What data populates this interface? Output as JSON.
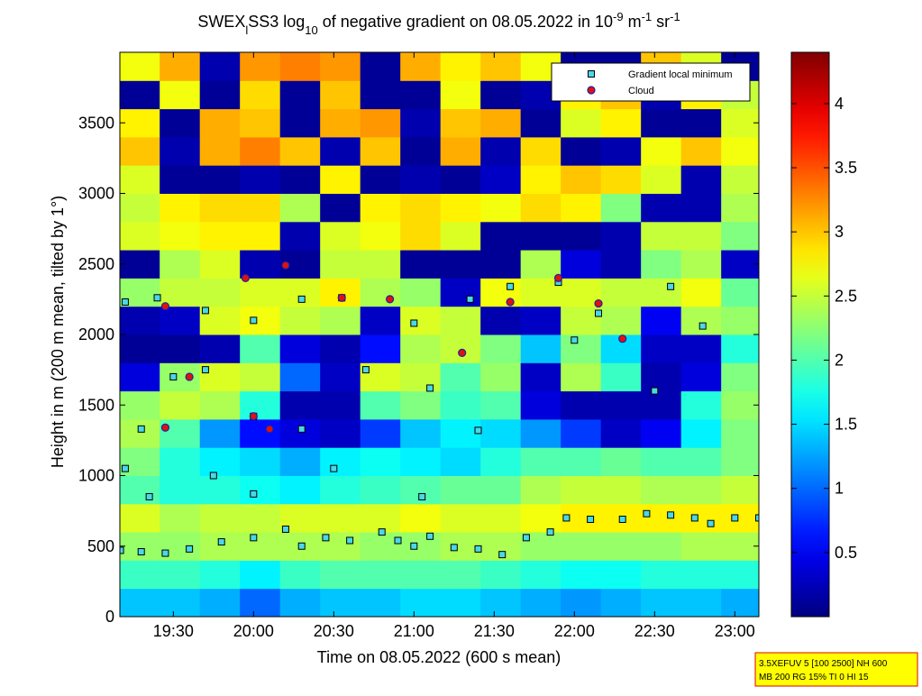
{
  "chart_data": {
    "type": "heatmap",
    "title_parts": [
      {
        "text": "SWEX",
        "baseline": "normal"
      },
      {
        "text": "l",
        "baseline": "sub"
      },
      {
        "text": "SS3 log",
        "baseline": "normal"
      },
      {
        "text": "10",
        "baseline": "sub"
      },
      {
        "text": " of negative gradient on 08.05.2022 in 10",
        "baseline": "normal"
      },
      {
        "text": "-9",
        "baseline": "super"
      },
      {
        "text": " m",
        "baseline": "normal"
      },
      {
        "text": "-1",
        "baseline": "super"
      },
      {
        "text": " sr",
        "baseline": "normal"
      },
      {
        "text": "-1",
        "baseline": "super"
      }
    ],
    "x_label": "Time on 08.05.2022 (600 s mean)",
    "y_label": "Height in m (200 m mean, tilted by 1°)",
    "colormap": "jet",
    "xlim": [
      19.1667,
      23.15
    ],
    "ylim": [
      0,
      4000
    ],
    "clim": [
      0,
      4.4
    ],
    "xticks": [
      {
        "value": 19.5,
        "label": "19:30"
      },
      {
        "value": 20,
        "label": "20:00"
      },
      {
        "value": 20.5,
        "label": "20:30"
      },
      {
        "value": 21,
        "label": "21:00"
      },
      {
        "value": 21.5,
        "label": "21:30"
      },
      {
        "value": 22,
        "label": "22:00"
      },
      {
        "value": 22.5,
        "label": "22:30"
      },
      {
        "value": 23,
        "label": "23:00"
      }
    ],
    "yticks": [
      0,
      500,
      1000,
      1500,
      2000,
      2500,
      3000,
      3500
    ],
    "cticks": [
      0.5,
      1,
      1.5,
      2,
      2.5,
      3,
      3.5,
      4
    ],
    "x": [
      19.29,
      19.54,
      19.79,
      20.04,
      20.29,
      20.54,
      20.79,
      21.04,
      21.29,
      21.54,
      21.79,
      22.04,
      22.29,
      22.54,
      22.79,
      23.04
    ],
    "y": [
      100,
      300,
      500,
      700,
      900,
      1100,
      1300,
      1500,
      1700,
      1900,
      2100,
      2300,
      2500,
      2700,
      2900,
      3100,
      3300,
      3500,
      3700,
      3900
    ],
    "z": [
      [
        1.4,
        1.4,
        1.3,
        1.0,
        1.3,
        1.4,
        1.4,
        1.5,
        1.5,
        1.4,
        1.3,
        1.2,
        1.3,
        1.4,
        1.4,
        1.3
      ],
      [
        1.9,
        1.9,
        1.8,
        1.6,
        1.9,
        2.0,
        2.0,
        2.0,
        2.0,
        1.9,
        1.8,
        1.7,
        1.7,
        1.8,
        1.8,
        1.8
      ],
      [
        2.3,
        2.3,
        2.4,
        2.4,
        2.4,
        2.4,
        2.3,
        2.3,
        2.4,
        2.4,
        2.3,
        2.3,
        2.3,
        2.3,
        2.4,
        2.4
      ],
      [
        2.6,
        2.4,
        2.5,
        2.5,
        2.6,
        2.6,
        2.6,
        2.7,
        2.6,
        2.6,
        2.7,
        2.8,
        2.8,
        2.8,
        2.8,
        2.8
      ],
      [
        2.0,
        1.8,
        1.8,
        1.7,
        1.6,
        1.8,
        1.9,
        2.0,
        2.1,
        2.1,
        2.4,
        2.5,
        2.5,
        2.4,
        2.4,
        2.5
      ],
      [
        2.2,
        1.8,
        1.6,
        1.5,
        1.3,
        1.6,
        1.7,
        1.6,
        1.5,
        1.8,
        2.0,
        2.0,
        2.1,
        2.0,
        2.0,
        2.2
      ],
      [
        2.4,
        2.0,
        1.2,
        0.6,
        0.4,
        0.3,
        0.8,
        1.4,
        1.6,
        1.5,
        1.2,
        0.8,
        0.3,
        0.5,
        1.6,
        2.2
      ],
      [
        2.3,
        2.5,
        2.4,
        1.8,
        0.2,
        0.2,
        2.0,
        2.2,
        1.9,
        2.0,
        0.4,
        0.2,
        0.2,
        0.2,
        1.8,
        2.3
      ],
      [
        0.4,
        2.3,
        2.6,
        2.5,
        1.0,
        0.3,
        2.6,
        2.5,
        2.0,
        2.3,
        0.3,
        2.4,
        1.9,
        0.2,
        0.4,
        2.2
      ],
      [
        0.1,
        0.1,
        0.2,
        2.0,
        0.4,
        0.2,
        0.6,
        2.4,
        2.5,
        2.2,
        1.4,
        2.2,
        1.5,
        0.3,
        0.3,
        1.8
      ],
      [
        0.2,
        0.3,
        2.6,
        2.7,
        2.5,
        2.4,
        0.3,
        2.6,
        2.5,
        0.2,
        0.3,
        2.5,
        2.4,
        0.5,
        2.4,
        2.3
      ],
      [
        2.3,
        2.5,
        2.5,
        2.6,
        2.6,
        2.8,
        2.4,
        2.3,
        0.3,
        2.7,
        2.6,
        2.6,
        2.5,
        2.5,
        2.7,
        2.1
      ],
      [
        0.1,
        2.4,
        2.6,
        0.2,
        0.1,
        2.5,
        2.5,
        0.1,
        0.1,
        0.1,
        2.4,
        0.4,
        0.2,
        2.2,
        2.4,
        0.3
      ],
      [
        2.6,
        2.7,
        2.8,
        2.8,
        0.2,
        2.6,
        2.7,
        2.9,
        2.6,
        0.1,
        0.1,
        0.1,
        0.2,
        2.5,
        2.5,
        2.2
      ],
      [
        2.5,
        2.8,
        2.9,
        2.9,
        2.4,
        0.1,
        2.8,
        2.9,
        2.8,
        2.7,
        2.9,
        2.8,
        2.2,
        0.2,
        0.2,
        2.4
      ],
      [
        2.6,
        0.1,
        0.1,
        0.2,
        0.1,
        2.8,
        0.1,
        0.2,
        0.1,
        0.3,
        2.8,
        3.0,
        2.9,
        2.6,
        0.2,
        2.5
      ],
      [
        3.0,
        0.2,
        3.1,
        3.3,
        3.0,
        0.2,
        3.0,
        0.1,
        3.1,
        0.2,
        2.9,
        0.1,
        0.2,
        2.7,
        3.0,
        2.7
      ],
      [
        2.8,
        0.1,
        3.1,
        3.0,
        0.1,
        3.1,
        3.2,
        0.2,
        3.0,
        3.1,
        0.1,
        2.6,
        2.8,
        0.1,
        0.1,
        2.6
      ],
      [
        0.1,
        2.7,
        0.1,
        2.9,
        0.1,
        3.0,
        0.1,
        0.1,
        2.7,
        0.1,
        0.2,
        2.8,
        3.0,
        0.2,
        2.8,
        2.5
      ],
      [
        2.7,
        3.1,
        0.2,
        3.2,
        3.3,
        3.2,
        0.1,
        3.1,
        2.8,
        3.0,
        2.7,
        0.1,
        0.1,
        3.0,
        2.6,
        0.1
      ]
    ],
    "series": [
      {
        "name": "Gradient local minimum",
        "marker": "square",
        "color": "#4ad8e8",
        "x": [
          19.17,
          19.3,
          19.45,
          19.6,
          19.8,
          20.0,
          20.2,
          20.3,
          20.45,
          20.6,
          20.8,
          20.9,
          21.0,
          21.1,
          21.25,
          21.4,
          21.55,
          21.7,
          21.85,
          21.95,
          22.1,
          22.3,
          22.45,
          22.6,
          22.75,
          22.85,
          23.0,
          23.15,
          19.2,
          19.4,
          19.7,
          20.0,
          20.3,
          20.55,
          21.0,
          21.35,
          21.6,
          21.9,
          22.15,
          22.6,
          22.8,
          19.5,
          19.7,
          20.7,
          21.1,
          21.4,
          19.3,
          20.0,
          20.3,
          19.35,
          19.75,
          20.0,
          20.5,
          21.05,
          22.0,
          22.5,
          19.2
        ],
        "y": [
          470,
          460,
          450,
          480,
          530,
          560,
          620,
          500,
          560,
          540,
          600,
          540,
          500,
          570,
          490,
          480,
          440,
          560,
          600,
          700,
          690,
          690,
          730,
          720,
          700,
          660,
          700,
          700,
          2230,
          2260,
          2170,
          2100,
          2250,
          2260,
          2080,
          2250,
          2340,
          2370,
          2150,
          2340,
          2060,
          1700,
          1750,
          1750,
          1620,
          1320,
          1330,
          1420,
          1330,
          850,
          1000,
          870,
          1050,
          850,
          1960,
          1600,
          1050
        ]
      },
      {
        "name": "Cloud",
        "marker": "circle",
        "color": "#e01010",
        "x": [
          19.95,
          19.45,
          19.6,
          20.2,
          20.55,
          20.85,
          21.6,
          21.3,
          21.9,
          22.15,
          22.3,
          19.45,
          20.0,
          20.1
        ],
        "y": [
          2400,
          2200,
          1700,
          2490,
          2260,
          2250,
          2230,
          1870,
          2400,
          2220,
          1970,
          1340,
          1420,
          1330
        ]
      }
    ],
    "legend": "upper right",
    "note": [
      "3.5XEFUV 5 [100 2500] NH 600",
      "MB 200 RG 15% TI 0 HI 15"
    ]
  }
}
